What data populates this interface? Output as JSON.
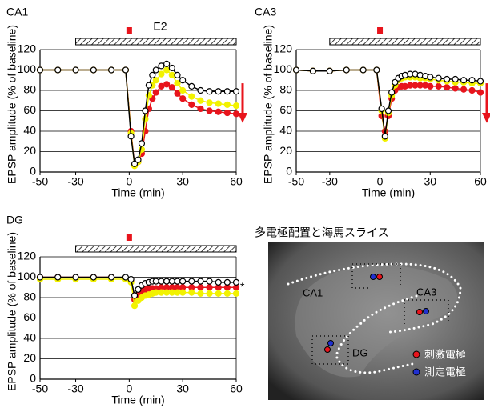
{
  "chart_data": [
    {
      "type": "line",
      "title": "CA1",
      "annotation": "E2",
      "x_label": "Time (min)",
      "y_label": "EPSP amplitude (% of baseline)",
      "x": [
        -50,
        -40,
        -30,
        -20,
        -10,
        -2,
        1,
        3,
        5,
        7,
        9,
        11,
        13,
        15,
        18,
        21,
        24,
        27,
        30,
        35,
        40,
        45,
        50,
        55,
        60
      ],
      "series": [
        {
          "color": "#ffffff",
          "values": [
            100,
            100,
            100,
            100,
            100,
            100,
            35,
            8,
            12,
            28,
            60,
            85,
            95,
            100,
            104,
            106,
            102,
            95,
            90,
            84,
            80,
            79,
            79,
            79,
            79
          ]
        },
        {
          "color": "#f2f200",
          "values": [
            100,
            100,
            100,
            100,
            100,
            100,
            38,
            6,
            10,
            22,
            52,
            75,
            85,
            90,
            96,
            100,
            95,
            87,
            80,
            74,
            70,
            68,
            67,
            66,
            65
          ]
        },
        {
          "color": "#e8141c",
          "values": [
            100,
            100,
            100,
            100,
            100,
            100,
            40,
            7,
            10,
            18,
            40,
            62,
            72,
            78,
            84,
            86,
            83,
            77,
            72,
            66,
            62,
            60,
            59,
            58,
            57
          ]
        }
      ],
      "treatment_range": [
        -30,
        60
      ],
      "stim_time": 0,
      "xlim": [
        -50,
        60
      ],
      "xticks": [
        -50,
        -30,
        0,
        30,
        60
      ],
      "ylim": [
        0,
        120
      ],
      "yticks": [
        0,
        20,
        40,
        60,
        80,
        100,
        120
      ],
      "grid": true
    },
    {
      "type": "line",
      "title": "CA3",
      "x_label": "Time (min)",
      "y_label": "EPSP amplitude (% of baseline)",
      "x": [
        -50,
        -40,
        -30,
        -20,
        -10,
        -2,
        1,
        3,
        5,
        7,
        9,
        11,
        13,
        15,
        18,
        21,
        24,
        27,
        30,
        35,
        40,
        45,
        50,
        55,
        60
      ],
      "series": [
        {
          "color": "#ffffff",
          "values": [
            100,
            99,
            99,
            100,
            100,
            100,
            62,
            35,
            60,
            78,
            88,
            92,
            94,
            95,
            96,
            96,
            95,
            94,
            93,
            92,
            91,
            91,
            90,
            90,
            89
          ]
        },
        {
          "color": "#f2f200",
          "values": [
            100,
            99,
            99,
            100,
            100,
            100,
            60,
            33,
            58,
            75,
            85,
            90,
            92,
            93,
            93,
            93,
            92,
            92,
            91,
            90,
            89,
            88,
            88,
            87,
            87
          ]
        },
        {
          "color": "#e8141c",
          "values": [
            100,
            99,
            99,
            100,
            100,
            100,
            55,
            40,
            55,
            72,
            80,
            83,
            84,
            84,
            85,
            85,
            85,
            85,
            84,
            84,
            83,
            82,
            81,
            80,
            78
          ]
        }
      ],
      "treatment_range": [
        -30,
        60
      ],
      "stim_time": 0,
      "xlim": [
        -50,
        60
      ],
      "xticks": [
        -50,
        -30,
        0,
        30,
        60
      ],
      "ylim": [
        0,
        120
      ],
      "yticks": [
        0,
        20,
        40,
        60,
        80,
        100,
        120
      ],
      "grid": true
    },
    {
      "type": "line",
      "title": "DG",
      "annotation": "*",
      "x_label": "Time (min)",
      "y_label": "EPSP amplitude (% of baseline)",
      "x": [
        -50,
        -40,
        -30,
        -20,
        -10,
        -2,
        1,
        3,
        5,
        7,
        9,
        11,
        13,
        15,
        18,
        21,
        24,
        27,
        30,
        35,
        40,
        45,
        50,
        55,
        60
      ],
      "series": [
        {
          "color": "#ffffff",
          "values": [
            100,
            100,
            100,
            100,
            100,
            100,
            98,
            82,
            88,
            92,
            94,
            95,
            96,
            96,
            96,
            96,
            96,
            96,
            96,
            96,
            96,
            96,
            95,
            95,
            95
          ]
        },
        {
          "color": "#f2f200",
          "values": [
            98,
            98,
            98,
            98,
            98,
            98,
            95,
            72,
            77,
            80,
            82,
            83,
            84,
            85,
            85,
            85,
            85,
            85,
            85,
            85,
            84,
            84,
            84,
            84,
            84
          ]
        },
        {
          "color": "#e8141c",
          "values": [
            100,
            100,
            100,
            100,
            100,
            99,
            96,
            78,
            83,
            86,
            88,
            89,
            89,
            89,
            90,
            90,
            90,
            90,
            90,
            90,
            90,
            90,
            90,
            90,
            90
          ]
        }
      ],
      "treatment_range": [
        -30,
        60
      ],
      "stim_time": 0,
      "xlim": [
        -50,
        60
      ],
      "xticks": [
        -50,
        -30,
        0,
        30,
        60
      ],
      "ylim": [
        0,
        120
      ],
      "yticks": [
        0,
        20,
        40,
        60,
        80,
        100,
        120
      ],
      "grid": true
    }
  ],
  "image_panel": {
    "title": "多電極配置と海馬スライス",
    "labels": [
      "CA1",
      "CA3",
      "DG"
    ],
    "legend": [
      "刺激電極",
      "測定電極"
    ]
  }
}
